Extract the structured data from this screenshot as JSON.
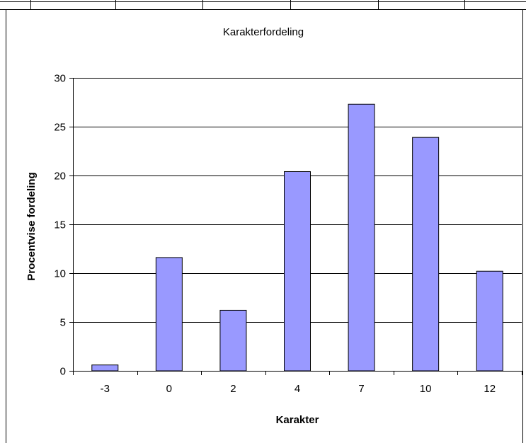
{
  "chart_data": {
    "type": "bar",
    "title": "Karakterfordeling",
    "xlabel": "Karakter",
    "ylabel": "Procentvise fordeling",
    "categories": [
      "-3",
      "0",
      "2",
      "4",
      "7",
      "10",
      "12"
    ],
    "values": [
      0.6,
      11.6,
      6.2,
      20.4,
      27.3,
      23.9,
      10.2
    ],
    "ylim": [
      0,
      30
    ],
    "yticks": [
      "0",
      "5",
      "10",
      "15",
      "20",
      "25",
      "30"
    ],
    "grid": true,
    "legend": "none",
    "colors": {
      "bar_fill": "#9999ff",
      "bar_stroke": "#000000",
      "grid": "#000000",
      "frame": "#000000"
    }
  }
}
